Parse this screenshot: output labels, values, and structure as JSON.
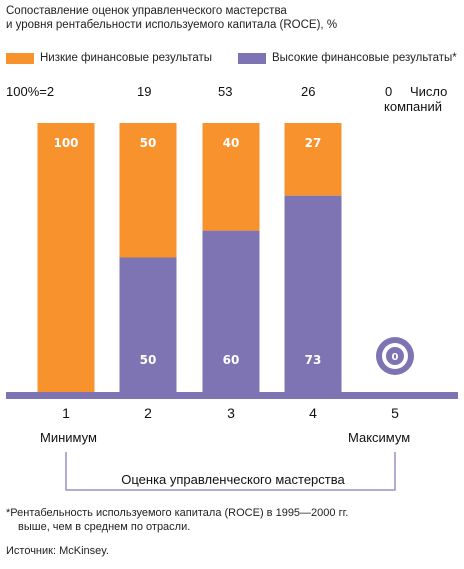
{
  "title_line1": "Сопоставление оценок управленческого мастерства",
  "title_line2": "и уровня рентабельности используемого капитала (ROCE), %",
  "legend": {
    "low": "Низкие финансовые результаты",
    "high": "Высокие финансовые результаты*"
  },
  "counts_label_line1": "Число",
  "counts_label_line2": "компаний",
  "scale_min_label": "Минимум",
  "scale_max_label": "Максимум",
  "footnote_line1": "*Рентабельность используемого капитала (ROCE) в 1995—2000 гг.",
  "footnote_line2": "выше, чем в среднем по отрасли.",
  "source": "Источник: McKinsey.",
  "colors": {
    "low": "#f7922d",
    "high": "#7e74b3",
    "axis": "#7e74b3",
    "bracket": "#9a92c8"
  },
  "chart_data": {
    "type": "bar",
    "title": "Сопоставление оценок управленческого мастерства и уровня рентабельности используемого капитала (ROCE), %",
    "xlabel": "Оценка управленческого мастерства",
    "ylabel": "",
    "ylim": [
      0,
      100
    ],
    "stacked": true,
    "categories": [
      "1",
      "2",
      "3",
      "4",
      "5"
    ],
    "count_labels": [
      "100%=2",
      "19",
      "53",
      "26",
      "0"
    ],
    "series": [
      {
        "name": "Низкие финансовые результаты",
        "values": [
          100,
          50,
          40,
          27,
          0
        ],
        "labels": [
          "100",
          "50",
          "40",
          "27",
          ""
        ]
      },
      {
        "name": "Высокие финансовые результаты*",
        "values": [
          0,
          50,
          60,
          73,
          0
        ],
        "labels": [
          "",
          "50",
          "60",
          "73",
          "0"
        ]
      }
    ],
    "legend": "top"
  }
}
